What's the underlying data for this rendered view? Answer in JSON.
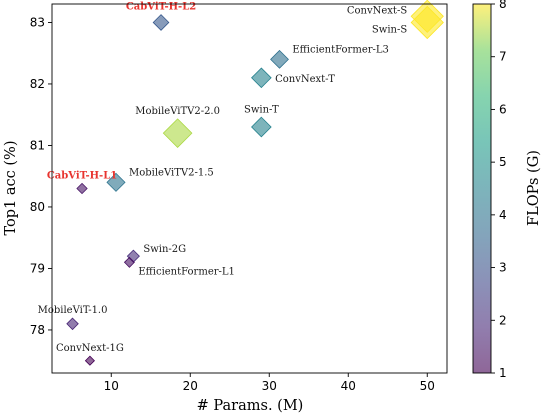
{
  "chart_data": {
    "type": "scatter",
    "xlabel": "# Params. (M)",
    "ylabel": "Top1 acc (%)",
    "xlim": [
      2.5,
      52.5
    ],
    "ylim": [
      77.3,
      83.3
    ],
    "xticks": [
      10,
      20,
      30,
      40,
      50
    ],
    "yticks": [
      78,
      79,
      80,
      81,
      82,
      83
    ],
    "marker": "diamond",
    "marker_size_encodes": "FLOPs (G)",
    "colorbar": {
      "label": "FLOPs (G)",
      "min": 1,
      "max": 8,
      "ticks": [
        1,
        2,
        3,
        4,
        5,
        6,
        7,
        8
      ],
      "colormap": "viridis",
      "alpha": 0.6
    },
    "points": [
      {
        "label": "CabViT-H-L2",
        "x": 16.3,
        "y": 83.0,
        "flops": 3.2,
        "highlight": true,
        "label_pos": "above"
      },
      {
        "label": "ConvNext-S",
        "x": 50.0,
        "y": 83.1,
        "flops": 8.7,
        "label_pos": "left-above"
      },
      {
        "label": "Swin-S",
        "x": 50.0,
        "y": 83.0,
        "flops": 8.7,
        "label_pos": "left-below"
      },
      {
        "label": "EfficientFormer-L3",
        "x": 31.3,
        "y": 82.4,
        "flops": 3.9,
        "label_pos": "right-above"
      },
      {
        "label": "ConvNext-T",
        "x": 29.0,
        "y": 82.1,
        "flops": 4.5,
        "label_pos": "right"
      },
      {
        "label": "Swin-T",
        "x": 29.0,
        "y": 81.3,
        "flops": 4.5,
        "label_pos": "above"
      },
      {
        "label": "MobileViTV2-2.0",
        "x": 18.4,
        "y": 81.2,
        "flops": 7.5,
        "label_pos": "above"
      },
      {
        "label": "CabViT-H-L1",
        "x": 6.3,
        "y": 80.3,
        "flops": 1.4,
        "highlight": true,
        "label_pos": "above"
      },
      {
        "label": "MobileViTV2-1.5",
        "x": 10.6,
        "y": 80.4,
        "flops": 4.0,
        "label_pos": "right-above"
      },
      {
        "label": "Swin-2G",
        "x": 12.8,
        "y": 79.2,
        "flops": 2.0,
        "label_pos": "right-above"
      },
      {
        "label": "EfficientFormer-L1",
        "x": 12.3,
        "y": 79.1,
        "flops": 1.3,
        "label_pos": "right-below"
      },
      {
        "label": "MobileViT-1.0",
        "x": 5.1,
        "y": 78.1,
        "flops": 1.8,
        "label_pos": "above"
      },
      {
        "label": "ConvNext-1G",
        "x": 7.3,
        "y": 77.5,
        "flops": 1.0,
        "label_pos": "above"
      }
    ]
  }
}
